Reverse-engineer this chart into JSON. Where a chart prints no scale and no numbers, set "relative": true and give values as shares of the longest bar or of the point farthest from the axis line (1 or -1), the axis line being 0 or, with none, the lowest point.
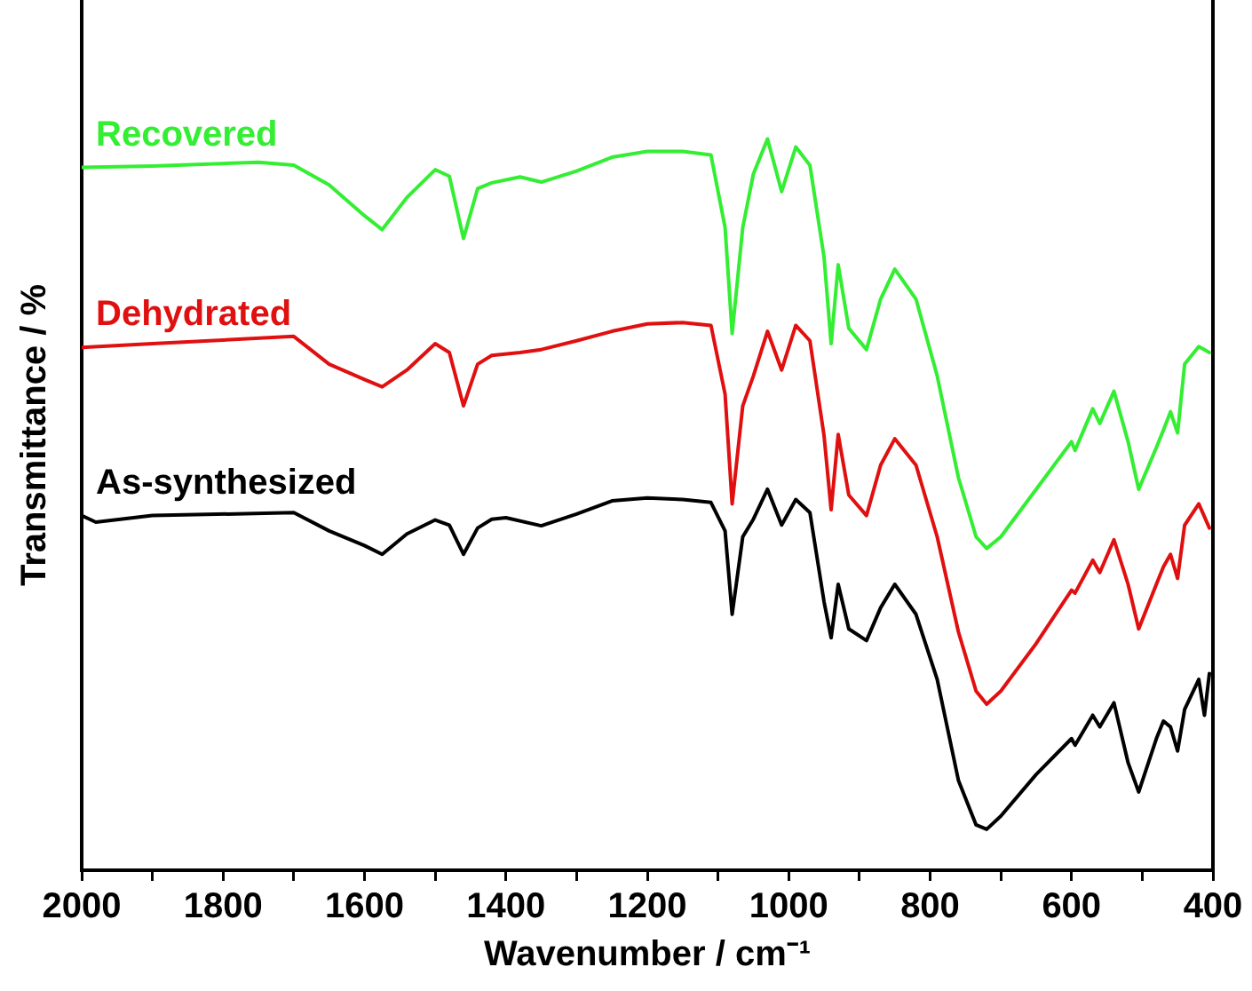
{
  "chart_data": {
    "type": "line",
    "relative": true,
    "xlabel": "Wavenumber / cm⁻¹",
    "ylabel": "Transmittance / %",
    "xlim": [
      2000,
      400
    ],
    "xticks": [
      2000,
      {
        "value": 1900,
        "label": null
      },
      1800,
      {
        "value": 1700,
        "label": null
      },
      1600,
      {
        "value": 1500,
        "label": null
      },
      1400,
      {
        "value": 1300,
        "label": null
      },
      1200,
      {
        "value": 1100,
        "label": null
      },
      1000,
      {
        "value": 900,
        "label": null
      },
      800,
      {
        "value": 700,
        "label": null
      },
      600,
      {
        "value": 500,
        "label": null
      },
      400
    ],
    "grid": false,
    "legend": false,
    "marker": "none",
    "line_style": "solid",
    "tick_labels": "x",
    "series": [
      {
        "name": "Recovered",
        "color": "#33ee33",
        "x": [
          2000,
          1900,
          1750,
          1700,
          1650,
          1600,
          1575,
          1540,
          1500,
          1480,
          1460,
          1440,
          1420,
          1380,
          1350,
          1300,
          1250,
          1200,
          1150,
          1110,
          1090,
          1080,
          1065,
          1050,
          1030,
          1010,
          990,
          970,
          950,
          940,
          930,
          915,
          890,
          870,
          850,
          820,
          790,
          760,
          735,
          720,
          700,
          650,
          600,
          595,
          570,
          560,
          540,
          520,
          505,
          480,
          470,
          460,
          450,
          440,
          420,
          405
        ],
        "values": [
          0.961,
          0.963,
          0.968,
          0.964,
          0.937,
          0.895,
          0.876,
          0.92,
          0.958,
          0.949,
          0.864,
          0.932,
          0.94,
          0.948,
          0.941,
          0.956,
          0.975,
          0.983,
          0.983,
          0.978,
          0.879,
          0.734,
          0.879,
          0.952,
          1.0,
          0.928,
          0.989,
          0.964,
          0.838,
          0.72,
          0.828,
          0.741,
          0.712,
          0.781,
          0.822,
          0.781,
          0.676,
          0.537,
          0.456,
          0.44,
          0.456,
          0.521,
          0.586,
          0.574,
          0.631,
          0.611,
          0.655,
          0.586,
          0.521,
          0.578,
          0.602,
          0.627,
          0.598,
          0.692,
          0.716,
          0.708
        ]
      },
      {
        "name": "Dehydrated",
        "color": "#e01010",
        "x": [
          2000,
          1900,
          1700,
          1650,
          1600,
          1575,
          1540,
          1500,
          1480,
          1460,
          1440,
          1420,
          1380,
          1350,
          1300,
          1250,
          1200,
          1150,
          1110,
          1090,
          1080,
          1065,
          1050,
          1030,
          1010,
          990,
          970,
          950,
          940,
          930,
          915,
          890,
          870,
          850,
          820,
          790,
          760,
          735,
          720,
          700,
          650,
          600,
          595,
          570,
          560,
          540,
          520,
          505,
          480,
          470,
          460,
          450,
          440,
          420,
          405
        ],
        "values": [
          0.715,
          0.72,
          0.73,
          0.692,
          0.671,
          0.661,
          0.684,
          0.72,
          0.708,
          0.635,
          0.692,
          0.704,
          0.708,
          0.712,
          0.724,
          0.737,
          0.747,
          0.749,
          0.745,
          0.651,
          0.501,
          0.635,
          0.676,
          0.737,
          0.684,
          0.745,
          0.724,
          0.594,
          0.493,
          0.596,
          0.513,
          0.485,
          0.554,
          0.59,
          0.554,
          0.456,
          0.326,
          0.245,
          0.227,
          0.245,
          0.31,
          0.383,
          0.379,
          0.424,
          0.407,
          0.452,
          0.391,
          0.33,
          0.391,
          0.415,
          0.432,
          0.399,
          0.472,
          0.501,
          0.468
        ]
      },
      {
        "name": "As-synthesized",
        "color": "#000000",
        "x": [
          2000,
          1980,
          1900,
          1700,
          1650,
          1600,
          1575,
          1540,
          1500,
          1480,
          1460,
          1440,
          1420,
          1400,
          1350,
          1300,
          1250,
          1200,
          1150,
          1110,
          1090,
          1080,
          1065,
          1050,
          1030,
          1010,
          990,
          970,
          950,
          940,
          930,
          915,
          890,
          870,
          850,
          820,
          790,
          760,
          735,
          720,
          700,
          650,
          600,
          595,
          570,
          560,
          540,
          520,
          505,
          480,
          470,
          460,
          450,
          440,
          420,
          412,
          405
        ],
        "values": [
          0.485,
          0.476,
          0.485,
          0.489,
          0.464,
          0.444,
          0.432,
          0.46,
          0.479,
          0.472,
          0.432,
          0.468,
          0.48,
          0.482,
          0.471,
          0.487,
          0.505,
          0.509,
          0.507,
          0.503,
          0.464,
          0.35,
          0.456,
          0.48,
          0.521,
          0.472,
          0.507,
          0.489,
          0.367,
          0.318,
          0.391,
          0.33,
          0.314,
          0.359,
          0.391,
          0.35,
          0.261,
          0.123,
          0.062,
          0.056,
          0.074,
          0.131,
          0.18,
          0.171,
          0.212,
          0.196,
          0.229,
          0.147,
          0.107,
          0.18,
          0.204,
          0.196,
          0.163,
          0.22,
          0.261,
          0.212,
          0.269
        ]
      }
    ]
  }
}
